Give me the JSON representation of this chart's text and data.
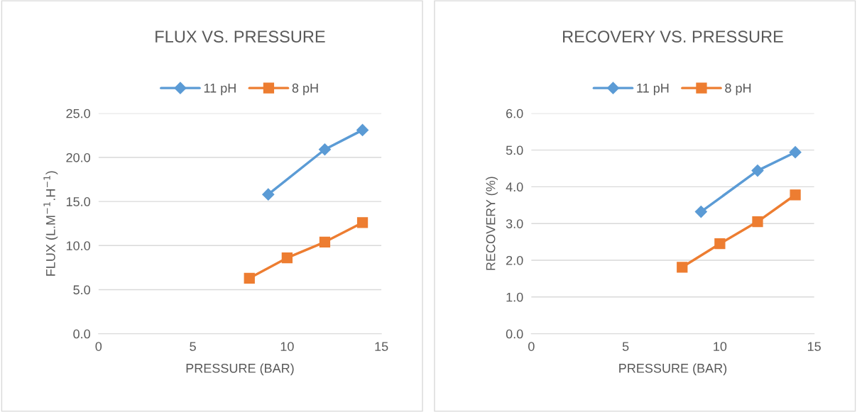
{
  "chart_data": [
    {
      "type": "line",
      "title": "FLUX VS. PRESSURE",
      "xlabel": "PRESSURE (BAR)",
      "ylabel": "FLUX (L.M$^{−1}$.H$^{−1}$)",
      "xlim": [
        0,
        15
      ],
      "xticks": [
        0,
        5,
        10,
        15
      ],
      "ylim": [
        0,
        25
      ],
      "yticks": [
        {
          "value": 0,
          "label": "0.0"
        },
        {
          "value": 5,
          "label": "5.0"
        },
        {
          "value": 10,
          "label": "10.0"
        },
        {
          "value": 15,
          "label": "15.0"
        },
        {
          "value": 20,
          "label": "20.0"
        },
        {
          "value": 25,
          "label": "25.0"
        }
      ],
      "grid": "y",
      "legend": "top",
      "series": [
        {
          "name": "11 pH",
          "color": "#5b9bd5",
          "marker": "diamond",
          "x": [
            9,
            12,
            14
          ],
          "values": [
            15.8,
            20.9,
            23.1
          ]
        },
        {
          "name": "8 pH",
          "color": "#ed7d31",
          "marker": "square",
          "x": [
            8,
            10,
            12,
            14
          ],
          "values": [
            6.3,
            8.6,
            10.4,
            12.6
          ]
        }
      ]
    },
    {
      "type": "line",
      "title": "RECOVERY VS. PRESSURE",
      "xlabel": "PRESSURE (BAR)",
      "ylabel": "RECOVERY (%)",
      "xlim": [
        0,
        15
      ],
      "xticks": [
        0,
        5,
        10,
        15
      ],
      "ylim": [
        0,
        6
      ],
      "yticks": [
        {
          "value": 0,
          "label": "0.0"
        },
        {
          "value": 1,
          "label": "1.0"
        },
        {
          "value": 2,
          "label": "2.0"
        },
        {
          "value": 3,
          "label": "3.0"
        },
        {
          "value": 4,
          "label": "4.0"
        },
        {
          "value": 5,
          "label": "5.0"
        },
        {
          "value": 6,
          "label": "6.0"
        }
      ],
      "grid": "y",
      "legend": "top",
      "series": [
        {
          "name": "11 pH",
          "color": "#5b9bd5",
          "marker": "diamond",
          "x": [
            9,
            12,
            14
          ],
          "values": [
            3.32,
            4.44,
            4.94
          ]
        },
        {
          "name": "8 pH",
          "color": "#ed7d31",
          "marker": "square",
          "x": [
            8,
            10,
            12,
            14
          ],
          "values": [
            1.81,
            2.45,
            3.05,
            3.78
          ]
        }
      ]
    }
  ]
}
